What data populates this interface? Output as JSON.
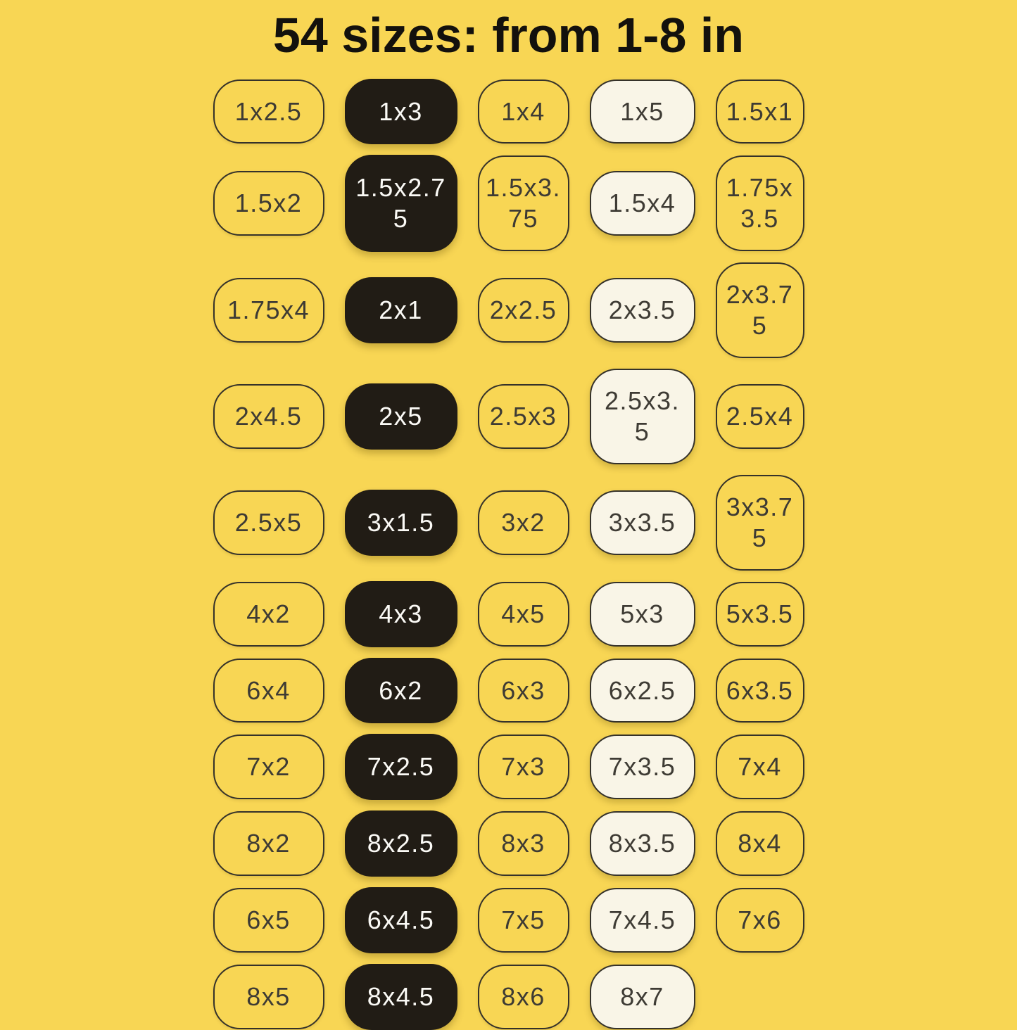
{
  "title": "54 sizes: from 1-8 in",
  "colors": {
    "background": "#F8D654",
    "pill_black_fill": "#211C15",
    "pill_cream_fill": "#F9F5E7",
    "pill_outline_border": "#35322A",
    "text_dark": "#3E3B34",
    "text_light": "#FBFAF6"
  },
  "variants": {
    "column_2": "black",
    "column_4": "cream",
    "other_columns": "outline"
  },
  "grid": {
    "rows": [
      {
        "cells": [
          "1x2.5",
          "1x3",
          "1x4",
          "1x5",
          "1.5x1"
        ]
      },
      {
        "cells": [
          "1.5x2",
          "1.5x2.75",
          "1.5x3.75",
          "1.5x4",
          "1.75x3.5"
        ]
      },
      {
        "cells": [
          "1.75x4",
          "2x1",
          "2x2.5",
          "2x3.5",
          "2x3.75"
        ]
      },
      {
        "cells": [
          "2x4.5",
          "2x5",
          "2.5x3",
          "2.5x3.5",
          "2.5x4"
        ]
      },
      {
        "cells": [
          "2.5x5",
          "3x1.5",
          "3x2",
          "3x3.5",
          "3x3.75"
        ]
      },
      {
        "cells": [
          "4x2",
          "4x3",
          "4x5",
          "5x3",
          "5x3.5"
        ]
      },
      {
        "cells": [
          "6x4",
          "6x2",
          "6x3",
          "6x2.5",
          "6x3.5"
        ]
      },
      {
        "cells": [
          "7x2",
          "7x2.5",
          "7x3",
          "7x3.5",
          "7x4"
        ]
      },
      {
        "cells": [
          "8x2",
          "8x2.5",
          "8x3",
          "8x3.5",
          "8x4"
        ]
      },
      {
        "cells": [
          "6x5",
          "6x4.5",
          "7x5",
          "7x4.5",
          "7x6"
        ]
      },
      {
        "cells": [
          "8x5",
          "8x4.5",
          "8x6",
          "8x7"
        ]
      }
    ]
  }
}
